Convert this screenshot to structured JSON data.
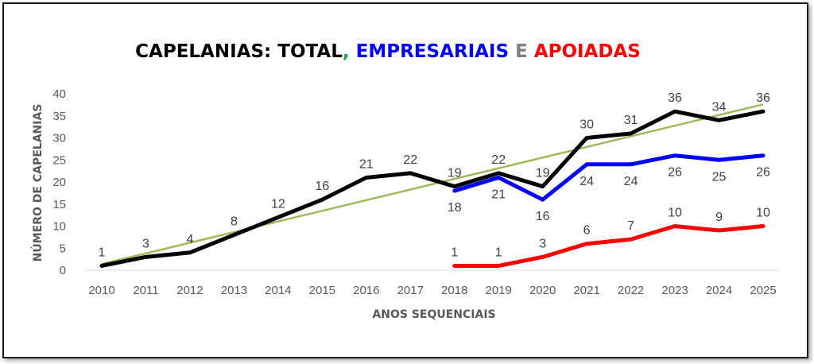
{
  "chart_data": {
    "type": "line",
    "title_parts": [
      {
        "text": "CAPELANIAS",
        "color": "#000000"
      },
      {
        "text": ": ",
        "color": "#000000"
      },
      {
        "text": "TOTAL",
        "color": "#000000"
      },
      {
        "text": ", ",
        "color": "#1aa64a"
      },
      {
        "text": "EMPRESARIAIS",
        "color": "#0000ff"
      },
      {
        "text": " E ",
        "color": "#7f7f7f"
      },
      {
        "text": "APOIADAS",
        "color": "#ff0000"
      }
    ],
    "xlabel": "ANOS SEQUENCIAIS",
    "ylabel": "NÚMERO DE CAPELANIAS",
    "x": [
      "2010",
      "2011",
      "2012",
      "2013",
      "2014",
      "2015",
      "2016",
      "2017",
      "2018",
      "2019",
      "2020",
      "2021",
      "2022",
      "2023",
      "2024",
      "2025"
    ],
    "yticks": [
      0,
      5,
      10,
      15,
      20,
      25,
      30,
      35,
      40
    ],
    "ylim": [
      0,
      40
    ],
    "grid": false,
    "series": [
      {
        "key": "total",
        "color": "#000000",
        "values": [
          1,
          3,
          4,
          8,
          12,
          16,
          21,
          22,
          19,
          22,
          19,
          30,
          31,
          36,
          34,
          36
        ],
        "label_pos": "above"
      },
      {
        "key": "empresariais",
        "color": "#0000ff",
        "values": [
          null,
          null,
          null,
          null,
          null,
          null,
          null,
          null,
          18,
          21,
          16,
          24,
          24,
          26,
          25,
          26
        ],
        "label_pos": "below"
      },
      {
        "key": "apoiadas",
        "color": "#ff0000",
        "values": [
          null,
          null,
          null,
          null,
          null,
          null,
          null,
          null,
          1,
          1,
          3,
          6,
          7,
          10,
          9,
          10
        ],
        "label_pos": "above"
      }
    ],
    "trendline": {
      "color": "#9bbb59",
      "start": 1.4,
      "end": 37.6
    }
  }
}
